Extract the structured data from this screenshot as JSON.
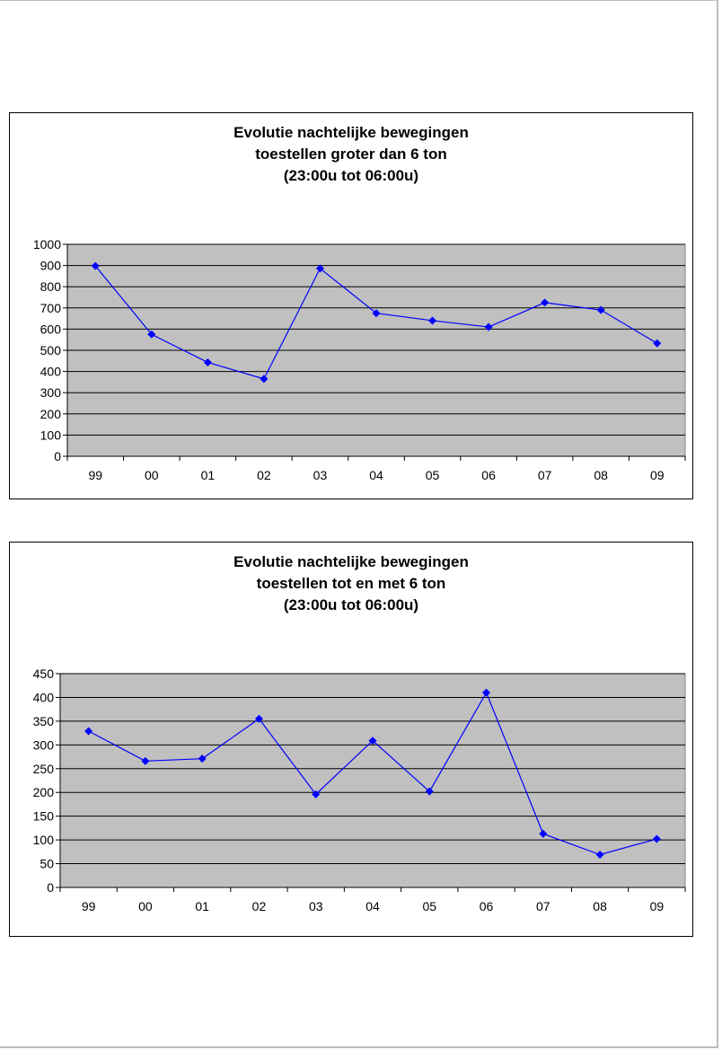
{
  "chart_data": [
    {
      "type": "line",
      "title_lines": [
        "Evolutie nachtelijke bewegingen",
        "toestellen groter dan 6 ton",
        "(23:00u tot 06:00u)"
      ],
      "categories": [
        "99",
        "00",
        "01",
        "02",
        "03",
        "04",
        "05",
        "06",
        "07",
        "08",
        "09"
      ],
      "series": [
        {
          "values": [
            898,
            575,
            443,
            365,
            886,
            675,
            640,
            610,
            725,
            690,
            533
          ]
        }
      ],
      "ylim": [
        0,
        1000
      ],
      "ystep": 100,
      "grid": true,
      "legend": "none",
      "plot_background": "#c0c0c0",
      "series_color": "#0000ff"
    },
    {
      "type": "line",
      "title_lines": [
        "Evolutie nachtelijke bewegingen",
        "toestellen tot en met 6 ton",
        "(23:00u tot 06:00u)"
      ],
      "categories": [
        "99",
        "00",
        "01",
        "02",
        "03",
        "04",
        "05",
        "06",
        "07",
        "08",
        "09"
      ],
      "series": [
        {
          "values": [
            329,
            266,
            271,
            355,
            196,
            309,
            202,
            410,
            113,
            69,
            102
          ]
        }
      ],
      "ylim": [
        0,
        450
      ],
      "ystep": 50,
      "grid": true,
      "legend": "none",
      "plot_background": "#c0c0c0",
      "series_color": "#0000ff"
    }
  ]
}
